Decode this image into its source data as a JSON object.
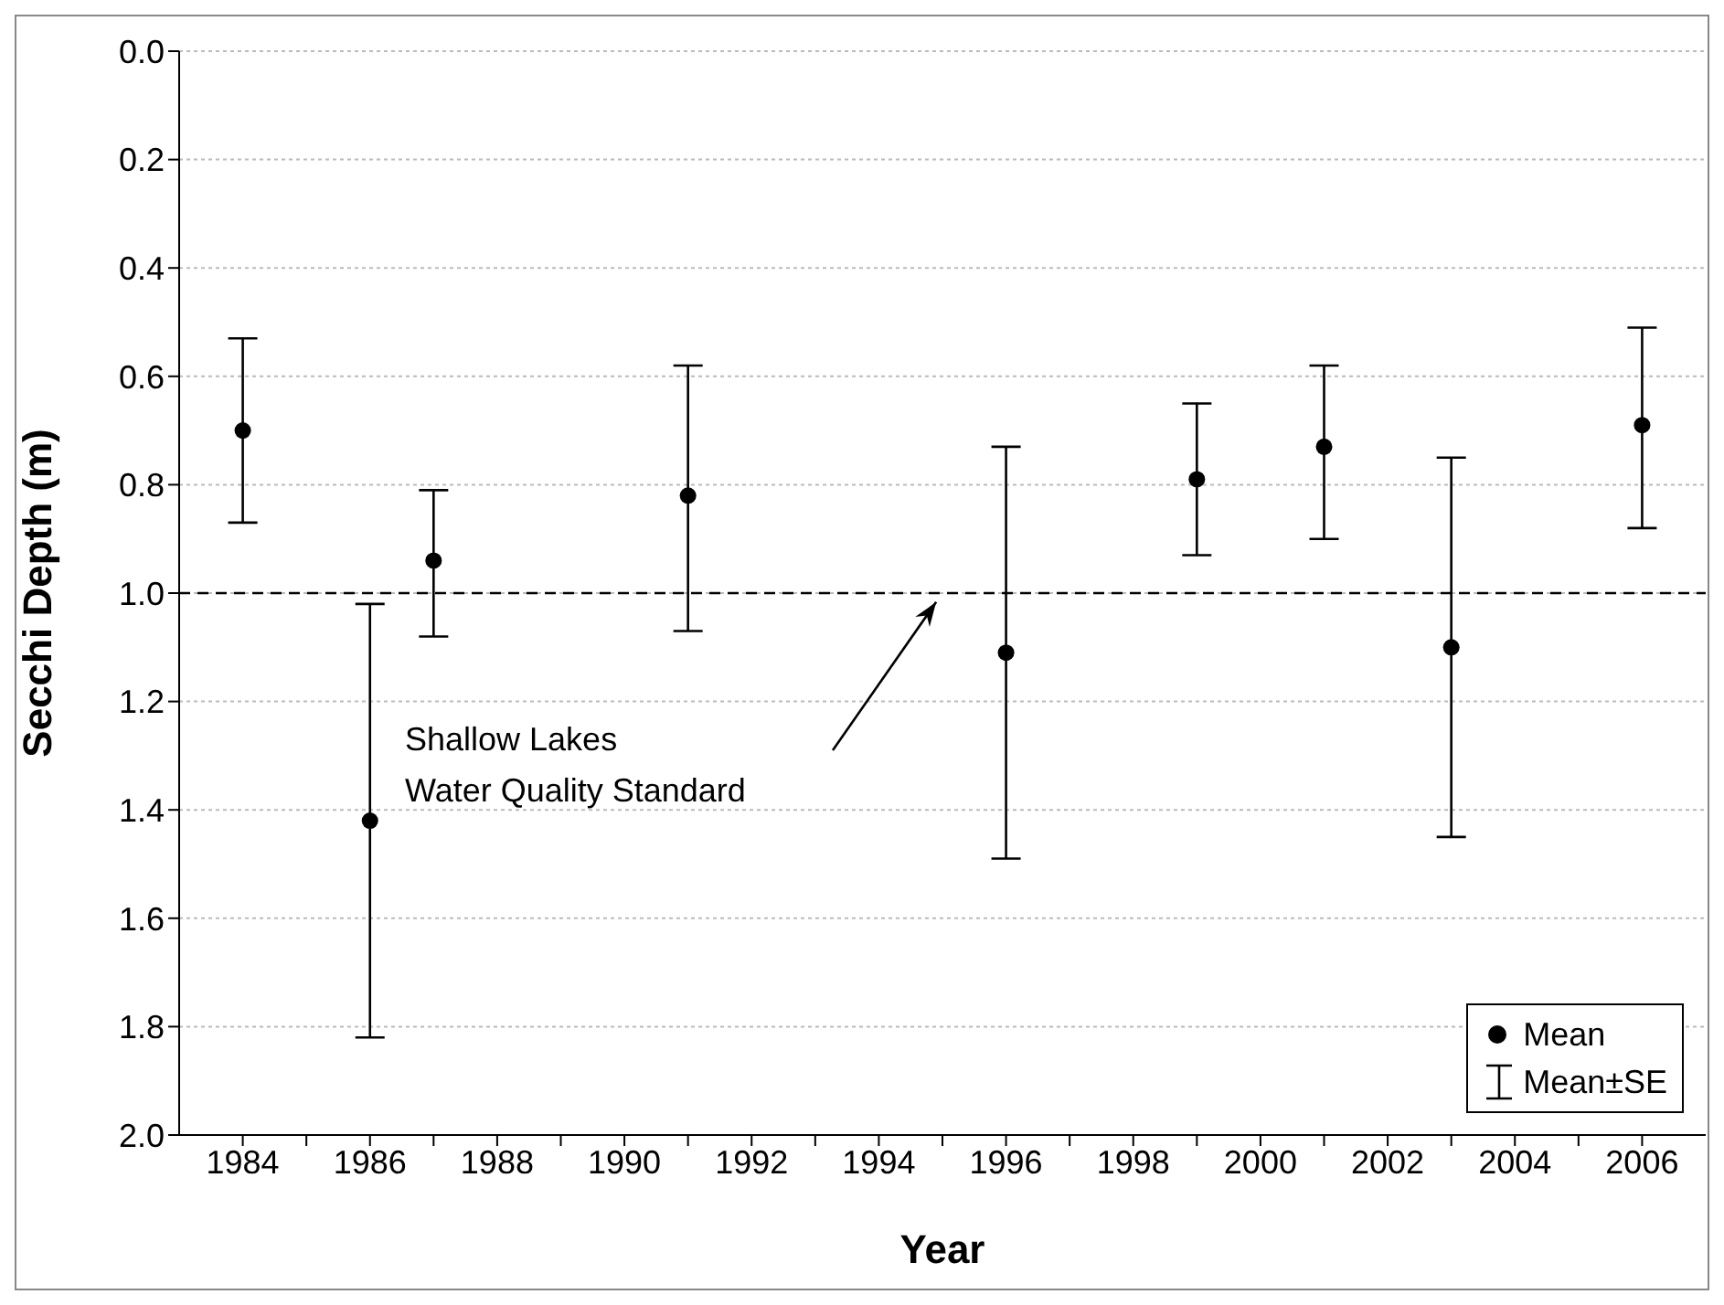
{
  "chart_data": {
    "type": "scatter",
    "xlabel": "Year",
    "ylabel": "Secchi Depth (m)",
    "x": [
      1984,
      1986,
      1987,
      1991,
      1996,
      1999,
      2001,
      2003,
      2006
    ],
    "series": [
      {
        "name": "Mean",
        "color": "#000000",
        "values": [
          0.7,
          1.42,
          0.94,
          0.82,
          1.11,
          0.79,
          0.73,
          1.1,
          0.69
        ],
        "errors": [
          [
            0.53,
            0.87
          ],
          [
            1.02,
            1.82
          ],
          [
            0.81,
            1.08
          ],
          [
            0.58,
            1.07
          ],
          [
            0.73,
            1.49
          ],
          [
            0.65,
            0.93
          ],
          [
            0.58,
            0.9
          ],
          [
            0.75,
            1.45
          ],
          [
            0.51,
            0.88
          ]
        ]
      }
    ],
    "xlim": [
      1983,
      2007
    ],
    "xticks": [
      1984,
      {
        "value": 1985,
        "label": null
      },
      1986,
      {
        "value": 1987,
        "label": null
      },
      1988,
      {
        "value": 1989,
        "label": null
      },
      1990,
      {
        "value": 1991,
        "label": null
      },
      1992,
      {
        "value": 1993,
        "label": null
      },
      1994,
      {
        "value": 1995,
        "label": null
      },
      1996,
      {
        "value": 1997,
        "label": null
      },
      1998,
      {
        "value": 1999,
        "label": null
      },
      2000,
      {
        "value": 2001,
        "label": null
      },
      2002,
      {
        "value": 2003,
        "label": null
      },
      2004,
      {
        "value": 2005,
        "label": null
      },
      2006
    ],
    "ylim": [
      2.0,
      0.0
    ],
    "yticks": [
      {
        "value": 0,
        "label": "0.0"
      },
      0.2,
      0.4,
      0.6,
      0.8,
      {
        "value": 1,
        "label": "1.0"
      },
      1.2,
      1.4,
      1.6,
      1.8,
      {
        "value": 2,
        "label": "2.0"
      }
    ],
    "grid": "y",
    "legend": "bottom right",
    "marker": "circle",
    "ref_lines": [
      {
        "axis": "y",
        "value": 1.0,
        "line_style": "dashed",
        "color": "#000000"
      }
    ],
    "annotations": [
      "Shallow Lakes\nWater Quality Standard",
      "Mean±SE"
    ]
  }
}
